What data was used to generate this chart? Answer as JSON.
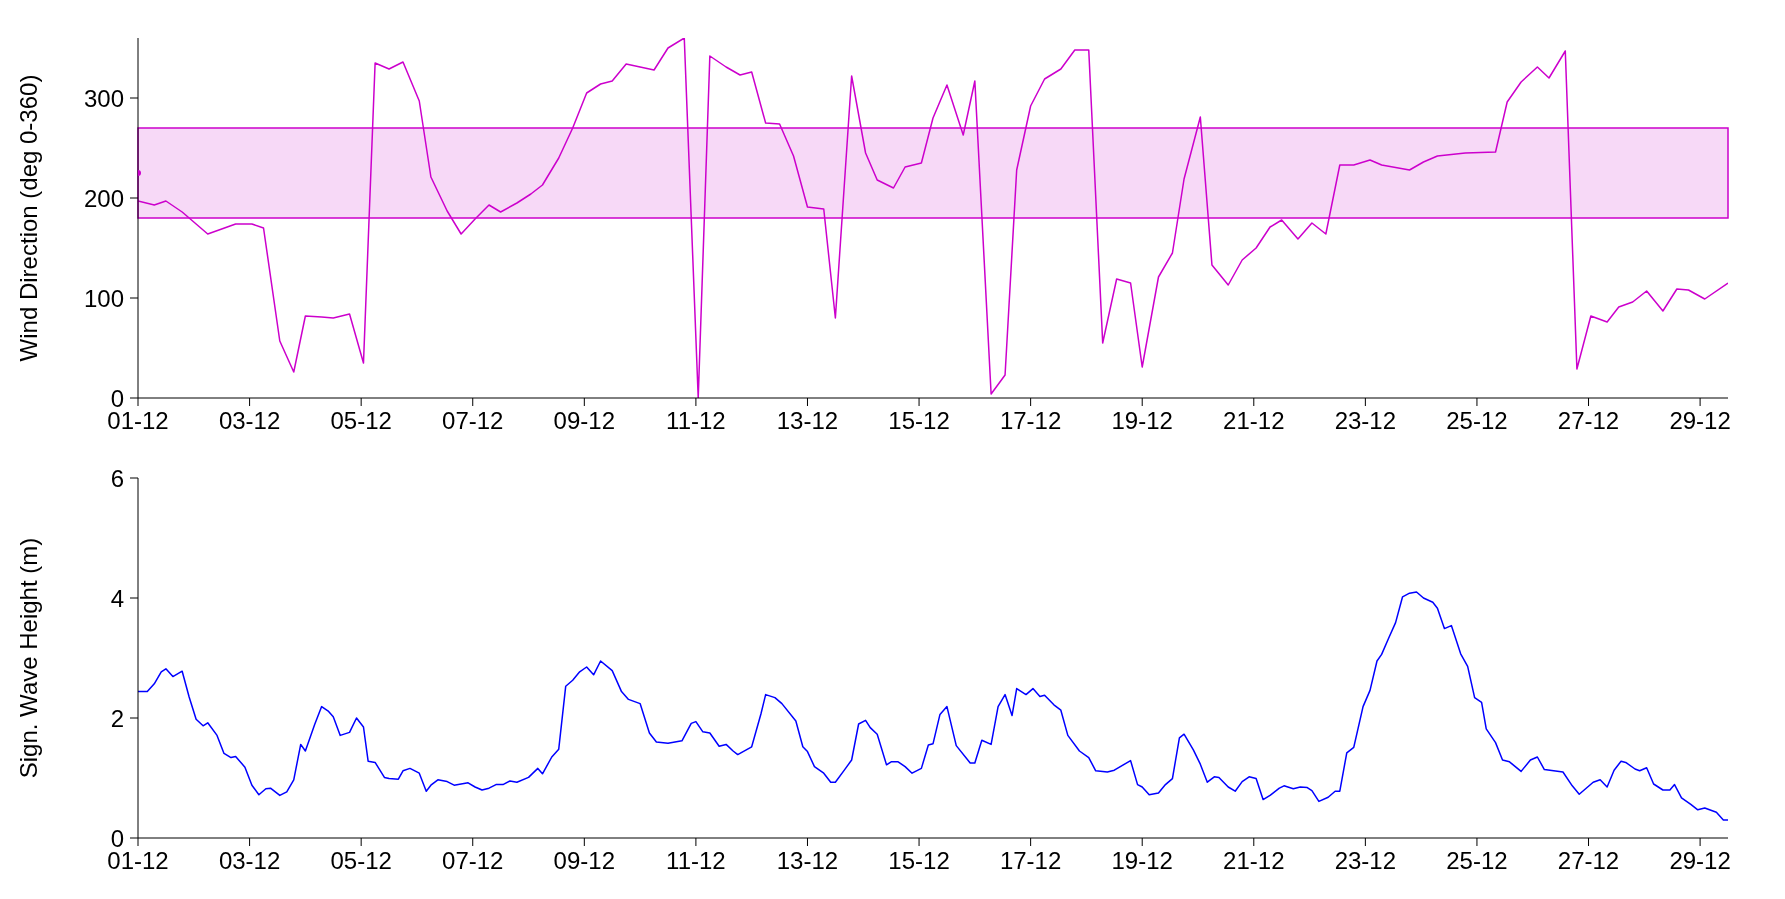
{
  "chart_data": [
    {
      "type": "line",
      "ylabel": "Wind Direction (deg 0-360)",
      "xlim": [
        "--12-01T00:00",
        "--12-29T12:00"
      ],
      "ylim": [
        0,
        360
      ],
      "yticks": [
        0,
        100,
        200,
        300
      ],
      "xticks": [
        {
          "value": "--12-01",
          "label": "01-12"
        },
        {
          "value": "--12-03",
          "label": "03-12"
        },
        {
          "value": "--12-05",
          "label": "05-12"
        },
        {
          "value": "--12-07",
          "label": "07-12"
        },
        {
          "value": "--12-09",
          "label": "09-12"
        },
        {
          "value": "--12-11",
          "label": "11-12"
        },
        {
          "value": "--12-13",
          "label": "13-12"
        },
        {
          "value": "--12-15",
          "label": "15-12"
        },
        {
          "value": "--12-17",
          "label": "17-12"
        },
        {
          "value": "--12-19",
          "label": "19-12"
        },
        {
          "value": "--12-21",
          "label": "21-12"
        },
        {
          "value": "--12-23",
          "label": "23-12"
        },
        {
          "value": "--12-25",
          "label": "25-12"
        },
        {
          "value": "--12-27",
          "label": "27-12"
        },
        {
          "value": "--12-29",
          "label": "29-12"
        }
      ],
      "bands": [
        {
          "axis": "y",
          "from": 180,
          "to": 270,
          "color": "#cc00cc"
        }
      ],
      "series": [
        {
          "color": "#cc00cc",
          "x": [
            "--12-01T00:00",
            "--12-01T07:00",
            "--12-01T12:00",
            "--12-01T19:00",
            "--12-02T06:00",
            "--12-02T12:00",
            "--12-02T18:00",
            "--12-03T01:00",
            "--12-03T06:00",
            "--12-03T13:00",
            "--12-03T19:00",
            "--12-04T00:00",
            "--12-04T07:00",
            "--12-04T12:00",
            "--12-04T19:00",
            "--12-05T01:00",
            "--12-05T06:00",
            "--12-05T12:00",
            "--12-05T18:00",
            "--12-06T01:00",
            "--12-06T06:00",
            "--12-06T13:00",
            "--12-06T19:00",
            "--12-07T01:00",
            "--12-07T07:00",
            "--12-07T12:00",
            "--12-07T19:00",
            "--12-08T01:00",
            "--12-08T06:00",
            "--12-08T13:00",
            "--12-08T19:00",
            "--12-09T01:00",
            "--12-09T07:00",
            "--12-09T12:00",
            "--12-09T18:00",
            "--12-10T00:00",
            "--12-10T06:00",
            "--12-10T12:00",
            "--12-10T19:00",
            "--12-11T01:00",
            "--12-11T06:00",
            "--12-11T13:00",
            "--12-11T19:00",
            "--12-12T00:00",
            "--12-12T06:00",
            "--12-12T12:00",
            "--12-12T18:00",
            "--12-13T00:00",
            "--12-13T07:00",
            "--12-13T12:00",
            "--12-13T19:00",
            "--12-14T01:00",
            "--12-14T06:00",
            "--12-14T13:00",
            "--12-14T18:00",
            "--12-15T01:00",
            "--12-15T06:00",
            "--12-15T12:00",
            "--12-15T19:00",
            "--12-16T00:00",
            "--12-16T07:00",
            "--12-16T13:00",
            "--12-16T18:00",
            "--12-17T00:00",
            "--12-17T06:00",
            "--12-17T13:00",
            "--12-17T19:00",
            "--12-18T01:00",
            "--12-18T07:00",
            "--12-18T13:00",
            "--12-18T19:00",
            "--12-19T00:00",
            "--12-19T07:00",
            "--12-19T13:00",
            "--12-19T18:00",
            "--12-20T01:00",
            "--12-20T06:00",
            "--12-20T13:00",
            "--12-20T19:00",
            "--12-21T01:00",
            "--12-21T07:00",
            "--12-21T12:00",
            "--12-21T19:00",
            "--12-22T01:00",
            "--12-22T07:00",
            "--12-22T13:00",
            "--12-22T19:00",
            "--12-23T02:00",
            "--12-23T07:00",
            "--12-23T19:00",
            "--12-24T01:00",
            "--12-24T07:00",
            "--12-24T19:00",
            "--12-25T08:00",
            "--12-25T13:00",
            "--12-25T19:00",
            "--12-26T02:00",
            "--12-26T07:00",
            "--12-26T14:00",
            "--12-26T19:00",
            "--12-27T01:00",
            "--12-27T08:00",
            "--12-27T13:00",
            "--12-27T19:00",
            "--12-28T01:00",
            "--12-28T08:00",
            "--12-28T14:00",
            "--12-28T19:00",
            "--12-29T02:00",
            "--12-29T12:00"
          ],
          "values": [
            197,
            193,
            197,
            186,
            164,
            169,
            174,
            174,
            170,
            57,
            26,
            82,
            81,
            80,
            84,
            35,
            335,
            329,
            336,
            297,
            221,
            187,
            164,
            179,
            193,
            186,
            195,
            204,
            213,
            240,
            270,
            305,
            314,
            317,
            334,
            331,
            328,
            350,
            360,
            0,
            342,
            331,
            323,
            326,
            275,
            274,
            242,
            191,
            189,
            80,
            322,
            245,
            218,
            210,
            231,
            235,
            280,
            313,
            263,
            317,
            4,
            23,
            228,
            292,
            319,
            329,
            348,
            348,
            55,
            119,
            115,
            31,
            121,
            145,
            219,
            281,
            133,
            113,
            138,
            150,
            171,
            178,
            159,
            175,
            164,
            233,
            233,
            238,
            233,
            228,
            236,
            242,
            245,
            246,
            296,
            316,
            331,
            320,
            347,
            29,
            82,
            76,
            91,
            96,
            107,
            87,
            109,
            108,
            99,
            115
          ]
        },
        {
          "type": "scatter",
          "color": "#cc00cc",
          "x": [
            "--12-01T00:00"
          ],
          "values": [
            225
          ]
        }
      ]
    },
    {
      "type": "line",
      "ylabel": "Sign. Wave Height (m)",
      "xlim": [
        "--12-01T00:00",
        "--12-29T12:00"
      ],
      "ylim": [
        0,
        6
      ],
      "yticks": [
        0,
        2,
        4,
        6
      ],
      "xticks": [
        {
          "value": "--12-01",
          "label": "01-12"
        },
        {
          "value": "--12-03",
          "label": "03-12"
        },
        {
          "value": "--12-05",
          "label": "05-12"
        },
        {
          "value": "--12-07",
          "label": "07-12"
        },
        {
          "value": "--12-09",
          "label": "09-12"
        },
        {
          "value": "--12-11",
          "label": "11-12"
        },
        {
          "value": "--12-13",
          "label": "13-12"
        },
        {
          "value": "--12-15",
          "label": "15-12"
        },
        {
          "value": "--12-17",
          "label": "17-12"
        },
        {
          "value": "--12-19",
          "label": "19-12"
        },
        {
          "value": "--12-21",
          "label": "21-12"
        },
        {
          "value": "--12-23",
          "label": "23-12"
        },
        {
          "value": "--12-25",
          "label": "25-12"
        },
        {
          "value": "--12-27",
          "label": "27-12"
        },
        {
          "value": "--12-29",
          "label": "29-12"
        }
      ],
      "series": [
        {
          "color": "#0000ff",
          "x": [
            "--12-01T00:00",
            "--12-01T04:00",
            "--12-01T07:00",
            "--12-01T10:00",
            "--12-01T12:00",
            "--12-01T15:00",
            "--12-01T19:00",
            "--12-01T22:00",
            "--12-02T01:00",
            "--12-02T04:00",
            "--12-02T06:00",
            "--12-02T10:00",
            "--12-02T13:00",
            "--12-02T16:00",
            "--12-02T18:00",
            "--12-02T22:00",
            "--12-03T01:00",
            "--12-03T04:00",
            "--12-03T07:00",
            "--12-03T09:00",
            "--12-03T13:00",
            "--12-03T16:00",
            "--12-03T19:00",
            "--12-03T22:00",
            "--12-04T00:00",
            "--12-04T04:00",
            "--12-04T07:00",
            "--12-04T10:00",
            "--12-04T12:00",
            "--12-04T15:00",
            "--12-04T19:00",
            "--12-04T22:00",
            "--12-05T01:00",
            "--12-05T03:00",
            "--12-05T06:00",
            "--12-05T10:00",
            "--12-05T12:00",
            "--12-05T16:00",
            "--12-05T18:00",
            "--12-05T21:00",
            "--12-06T01:00",
            "--12-06T04:00",
            "--12-06T06:00",
            "--12-06T09:00",
            "--12-06T13:00",
            "--12-06T16:00",
            "--12-06T22:00",
            "--12-07T01:00",
            "--12-07T04:00",
            "--12-07T07:00",
            "--12-07T10:00",
            "--12-07T13:00",
            "--12-07T16:00",
            "--12-07T19:00",
            "--12-08T00:00",
            "--12-08T04:00",
            "--12-08T06:00",
            "--12-08T10:00",
            "--12-08T13:00",
            "--12-08T16:00",
            "--12-08T19:00",
            "--12-08T22:00",
            "--12-09T01:00",
            "--12-09T04:00",
            "--12-09T07:00",
            "--12-09T12:00",
            "--12-09T16:00",
            "--12-09T19:00",
            "--12-10T00:00",
            "--12-10T04:00",
            "--12-10T07:00",
            "--12-10T12:00",
            "--12-10T18:00",
            "--12-10T22:00",
            "--12-11T00:00",
            "--12-11T03:00",
            "--12-11T06:00",
            "--12-11T10:00",
            "--12-11T13:00",
            "--12-11T16:00",
            "--12-11T18:00",
            "--12-12T00:00",
            "--12-12T04:00",
            "--12-12T06:00",
            "--12-12T10:00",
            "--12-12T13:00",
            "--12-12T19:00",
            "--12-12T22:00",
            "--12-13T00:00",
            "--12-13T03:00",
            "--12-13T07:00",
            "--12-13T10:00",
            "--12-13T12:00",
            "--12-13T16:00",
            "--12-13T19:00",
            "--12-13T22:00",
            "--12-14T01:00",
            "--12-14T03:00",
            "--12-14T06:00",
            "--12-14T10:00",
            "--12-14T12:00",
            "--12-14T15:00",
            "--12-14T18:00",
            "--12-14T21:00",
            "--12-15T01:00",
            "--12-15T04:00",
            "--12-15T06:00",
            "--12-15T09:00",
            "--12-15T12:00",
            "--12-15T16:00",
            "--12-15T22:00",
            "--12-16T00:00",
            "--12-16T03:00",
            "--12-16T07:00",
            "--12-16T10:00",
            "--12-16T13:00",
            "--12-16T16:00",
            "--12-16T18:00",
            "--12-16T22:00",
            "--12-17T01:00",
            "--12-17T04:00",
            "--12-17T06:00",
            "--12-17T10:00",
            "--12-17T13:00",
            "--12-17T16:00",
            "--12-17T21:00",
            "--12-18T01:00",
            "--12-18T04:00",
            "--12-18T09:00",
            "--12-18T12:00",
            "--12-18T19:00",
            "--12-18T22:00",
            "--12-19T00:00",
            "--12-19T03:00",
            "--12-19T07:00",
            "--12-19T10:00",
            "--12-19T13:00",
            "--12-19T16:00",
            "--12-19T18:00",
            "--12-19T22:00",
            "--12-20T01:00",
            "--12-20T04:00",
            "--12-20T07:00",
            "--12-20T09:00",
            "--12-20T13:00",
            "--12-20T16:00",
            "--12-20T19:00",
            "--12-20T22:00",
            "--12-21T01:00",
            "--12-21T04:00",
            "--12-21T07:00",
            "--12-21T11:00",
            "--12-21T13:00",
            "--12-21T17:00",
            "--12-21T20:00",
            "--12-21T23:00",
            "--12-22T01:00",
            "--12-22T04:00",
            "--12-22T08:00",
            "--12-22T11:00",
            "--12-22T13:00",
            "--12-22T16:00",
            "--12-22T19:00",
            "--12-22T23:00",
            "--12-23T02:00",
            "--12-23T05:00",
            "--12-23T07:00",
            "--12-23T10:00",
            "--12-23T13:00",
            "--12-23T16:00",
            "--12-23T19:00",
            "--12-23T22:00",
            "--12-24T01:00",
            "--12-24T05:00",
            "--12-24T07:00",
            "--12-24T10:00",
            "--12-24T13:00",
            "--12-24T17:00",
            "--12-24T20:00",
            "--12-24T23:00",
            "--12-25T02:00",
            "--12-25T04:00",
            "--12-25T08:00",
            "--12-25T11:00",
            "--12-25T14:00",
            "--12-25T19:00",
            "--12-25T23:00",
            "--12-26T02:00",
            "--12-26T05:00",
            "--12-26T13:00",
            "--12-26T17:00",
            "--12-26T20:00",
            "--12-26T23:00",
            "--12-27T02:00",
            "--12-27T05:00",
            "--12-27T08:00",
            "--12-27T11:00",
            "--12-27T14:00",
            "--12-27T16:00",
            "--12-27T20:00",
            "--12-27T22:00",
            "--12-28T01:00",
            "--12-28T04:00",
            "--12-28T08:00",
            "--12-28T11:00",
            "--12-28T13:00",
            "--12-28T16:00",
            "--12-28T20:00",
            "--12-28T23:00",
            "--12-29T02:00",
            "--12-29T07:00",
            "--12-29T10:00",
            "--12-29T12:00"
          ],
          "values": [
            2.44,
            2.44,
            2.57,
            2.77,
            2.82,
            2.69,
            2.78,
            2.35,
            1.98,
            1.87,
            1.92,
            1.71,
            1.41,
            1.34,
            1.36,
            1.18,
            0.88,
            0.72,
            0.82,
            0.83,
            0.71,
            0.77,
            0.97,
            1.56,
            1.45,
            1.89,
            2.19,
            2.11,
            2.02,
            1.71,
            1.76,
            2.0,
            1.85,
            1.28,
            1.26,
            1.01,
            0.99,
            0.98,
            1.12,
            1.16,
            1.08,
            0.78,
            0.88,
            0.97,
            0.94,
            0.88,
            0.92,
            0.85,
            0.8,
            0.83,
            0.89,
            0.89,
            0.95,
            0.93,
            1.01,
            1.16,
            1.07,
            1.35,
            1.48,
            2.53,
            2.63,
            2.77,
            2.85,
            2.72,
            2.95,
            2.79,
            2.44,
            2.31,
            2.24,
            1.75,
            1.6,
            1.58,
            1.62,
            1.91,
            1.94,
            1.77,
            1.75,
            1.53,
            1.56,
            1.45,
            1.39,
            1.52,
            2.07,
            2.39,
            2.34,
            2.24,
            1.95,
            1.52,
            1.44,
            1.19,
            1.08,
            0.93,
            0.93,
            1.14,
            1.3,
            1.9,
            1.96,
            1.84,
            1.73,
            1.22,
            1.27,
            1.27,
            1.19,
            1.08,
            1.16,
            1.55,
            1.57,
            2.06,
            2.19,
            1.54,
            1.25,
            1.25,
            1.63,
            1.56,
            2.19,
            2.39,
            2.04,
            2.49,
            2.39,
            2.49,
            2.36,
            2.38,
            2.22,
            2.13,
            1.71,
            1.45,
            1.34,
            1.12,
            1.1,
            1.13,
            1.29,
            0.89,
            0.85,
            0.72,
            0.75,
            0.89,
            0.99,
            1.67,
            1.73,
            1.47,
            1.23,
            0.93,
            1.02,
            1.01,
            0.85,
            0.78,
            0.94,
            1.02,
            0.99,
            0.64,
            0.71,
            0.83,
            0.87,
            0.82,
            0.85,
            0.84,
            0.79,
            0.61,
            0.68,
            0.78,
            0.78,
            1.42,
            1.51,
            2.19,
            2.46,
            2.95,
            3.06,
            3.33,
            3.59,
            4.02,
            4.08,
            4.1,
            4.0,
            3.93,
            3.83,
            3.49,
            3.54,
            3.07,
            2.86,
            2.34,
            2.26,
            1.82,
            1.59,
            1.3,
            1.27,
            1.11,
            1.3,
            1.35,
            1.14,
            1.1,
            0.87,
            0.73,
            0.83,
            0.93,
            0.97,
            0.85,
            1.13,
            1.28,
            1.26,
            1.15,
            1.12,
            1.17,
            0.9,
            0.8,
            0.8,
            0.89,
            0.67,
            0.56,
            0.47,
            0.5,
            0.43,
            0.3,
            0.3
          ]
        }
      ]
    }
  ]
}
